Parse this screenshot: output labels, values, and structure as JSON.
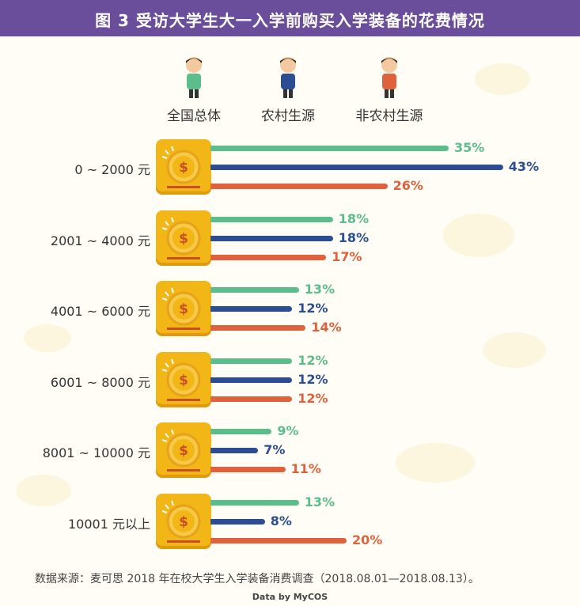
{
  "header": {
    "title": "图 3  受访大学生大一入学前购买入学装备的花费情况"
  },
  "colors": {
    "national": "#5cbd8c",
    "rural": "#2a4d93",
    "nonrural": "#e0623c",
    "header_bg": "#6a4e9b"
  },
  "chart_data": {
    "type": "bar",
    "orientation": "horizontal",
    "title": "图 3  受访大学生大一入学前购买入学装备的花费情况",
    "categories": [
      "0 ~ 2000 元",
      "2001 ~ 4000 元",
      "4001 ~ 6000 元",
      "6001 ~ 8000 元",
      "8001 ~ 10000 元",
      "10001 元以上"
    ],
    "series": [
      {
        "name": "全国总体",
        "values": [
          35,
          18,
          13,
          12,
          9,
          13
        ],
        "labels": [
          "35%",
          "18%",
          "13%",
          "12%",
          "9%",
          "13%"
        ]
      },
      {
        "name": "农村生源",
        "values": [
          43,
          18,
          12,
          12,
          7,
          8
        ],
        "labels": [
          "43%",
          "18%",
          "12%",
          "12%",
          "7%",
          "8%"
        ]
      },
      {
        "name": "非农村生源",
        "values": [
          26,
          17,
          14,
          12,
          11,
          20
        ],
        "labels": [
          "26%",
          "17%",
          "14%",
          "12%",
          "11%",
          "20%"
        ]
      }
    ],
    "legend": "top"
  },
  "footer": {
    "source": "数据来源：麦可思 2018 年在校大学生入学装备消费调查（2018.08.01—2018.08.13）。",
    "credit": "Data by MyCOS"
  }
}
